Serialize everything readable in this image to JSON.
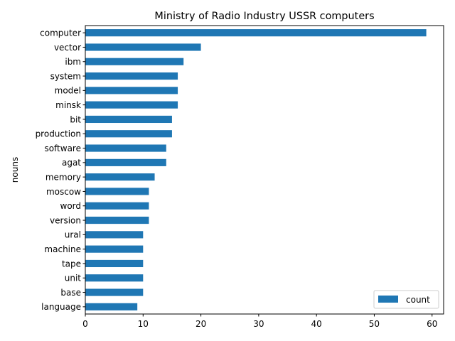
{
  "chart_data": {
    "type": "bar",
    "orientation": "horizontal",
    "title": "Ministry of Radio Industry USSR computers",
    "xlabel": "",
    "ylabel": "nouns",
    "categories": [
      "computer",
      "vector",
      "ibm",
      "system",
      "model",
      "minsk",
      "bit",
      "production",
      "software",
      "agat",
      "memory",
      "moscow",
      "word",
      "version",
      "ural",
      "machine",
      "tape",
      "unit",
      "base",
      "language"
    ],
    "series": [
      {
        "name": "count",
        "values": [
          59,
          20,
          17,
          16,
          16,
          16,
          15,
          15,
          14,
          14,
          12,
          11,
          11,
          11,
          10,
          10,
          10,
          10,
          10,
          9
        ]
      }
    ],
    "xlim": [
      0,
      62
    ],
    "xticks": [
      0,
      10,
      20,
      30,
      40,
      50,
      60
    ],
    "grid": false,
    "legend_position": "lower-right",
    "colors": {
      "bar": "#1f77b4"
    }
  }
}
